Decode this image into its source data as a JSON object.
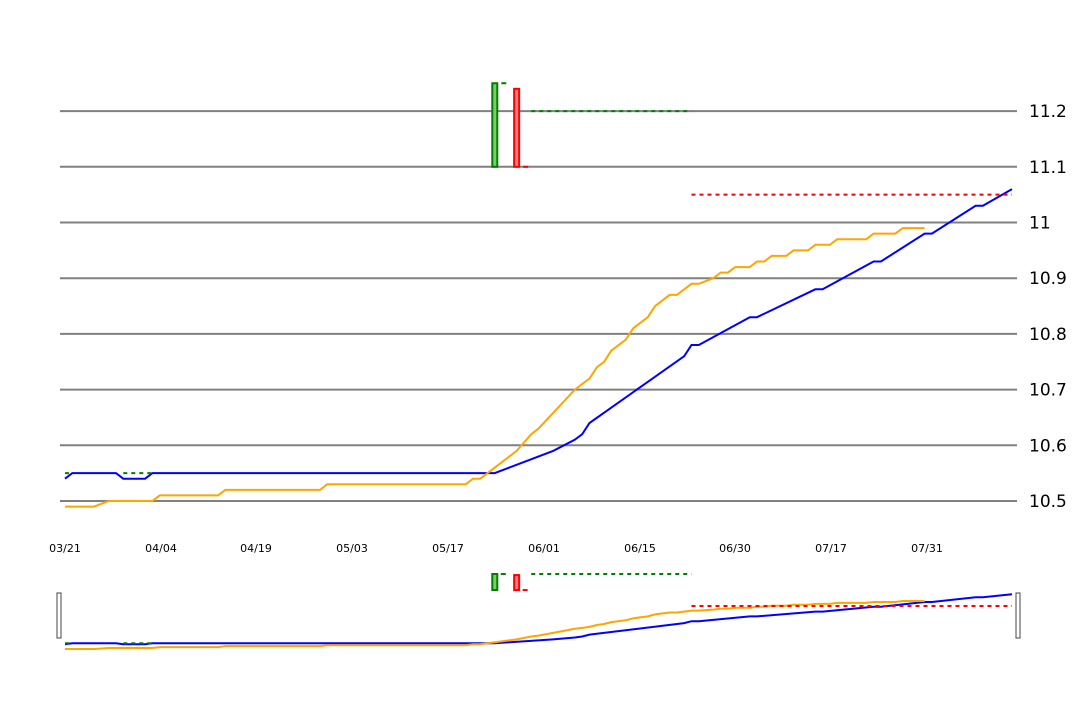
{
  "chart_data": {
    "type": "line",
    "title": "",
    "xlabel": "",
    "ylabel": "",
    "ylim": [
      10.5,
      11.2
    ],
    "y_ticks": [
      "10.5",
      "10.6",
      "10.7",
      "10.8",
      "10.9",
      "11",
      "11.1",
      "11.2"
    ],
    "x_ticks": [
      "03/21",
      "04/04",
      "04/19",
      "05/03",
      "05/17",
      "06/01",
      "06/15",
      "06/30",
      "07/17",
      "07/31"
    ],
    "grid": "horizontal",
    "y_axis_position": "right",
    "colors": {
      "blue_series": "#0000ff",
      "orange_series": "#ffa500",
      "green_marker": "#008000",
      "red_marker": "#ff0000",
      "grid": "#808080"
    },
    "series": [
      {
        "color": "#0000ff",
        "x_index_range": [
          0,
          130
        ],
        "points": [
          [
            0,
            10.54
          ],
          [
            1,
            10.55
          ],
          [
            7,
            10.55
          ],
          [
            8,
            10.54
          ],
          [
            11,
            10.54
          ],
          [
            12,
            10.55
          ],
          [
            59,
            10.55
          ],
          [
            67,
            10.59
          ],
          [
            70,
            10.61
          ],
          [
            71,
            10.62
          ],
          [
            72,
            10.64
          ],
          [
            85,
            10.76
          ],
          [
            86,
            10.78
          ],
          [
            87,
            10.78
          ],
          [
            94,
            10.83
          ],
          [
            95,
            10.83
          ],
          [
            103,
            10.88
          ],
          [
            104,
            10.88
          ],
          [
            111,
            10.93
          ],
          [
            112,
            10.93
          ],
          [
            118,
            10.98
          ],
          [
            119,
            10.98
          ],
          [
            125,
            11.03
          ],
          [
            126,
            11.03
          ],
          [
            130,
            11.06
          ]
        ]
      },
      {
        "color": "#ffa500",
        "x_index_range": [
          0,
          130
        ],
        "points": [
          [
            0,
            10.49
          ],
          [
            4,
            10.49
          ],
          [
            6,
            10.5
          ],
          [
            12,
            10.5
          ],
          [
            13,
            10.51
          ],
          [
            21,
            10.51
          ],
          [
            22,
            10.52
          ],
          [
            35,
            10.52
          ],
          [
            36,
            10.53
          ],
          [
            55,
            10.53
          ],
          [
            56,
            10.54
          ],
          [
            57,
            10.54
          ],
          [
            59,
            10.56
          ],
          [
            62,
            10.59
          ],
          [
            64,
            10.62
          ],
          [
            65,
            10.63
          ],
          [
            70,
            10.7
          ],
          [
            71,
            10.71
          ],
          [
            72,
            10.72
          ],
          [
            73,
            10.74
          ],
          [
            74,
            10.75
          ],
          [
            75,
            10.77
          ],
          [
            77,
            10.79
          ],
          [
            78,
            10.81
          ],
          [
            80,
            10.83
          ],
          [
            81,
            10.85
          ],
          [
            83,
            10.87
          ],
          [
            84,
            10.87
          ],
          [
            86,
            10.89
          ],
          [
            87,
            10.89
          ],
          [
            89,
            10.9
          ],
          [
            90,
            10.91
          ],
          [
            91,
            10.91
          ],
          [
            92,
            10.92
          ],
          [
            94,
            10.92
          ],
          [
            95,
            10.93
          ],
          [
            96,
            10.93
          ],
          [
            97,
            10.94
          ],
          [
            99,
            10.94
          ],
          [
            100,
            10.95
          ],
          [
            102,
            10.95
          ],
          [
            103,
            10.96
          ],
          [
            105,
            10.96
          ],
          [
            106,
            10.97
          ],
          [
            110,
            10.97
          ],
          [
            111,
            10.98
          ],
          [
            114,
            10.98
          ],
          [
            115,
            10.99
          ],
          [
            118,
            10.99
          ]
        ]
      }
    ],
    "markers": [
      {
        "kind": "dashed",
        "color": "#008000",
        "x_index_range": [
          0,
          1
        ],
        "y": 10.55
      },
      {
        "kind": "dashed",
        "color": "#008000",
        "x_index_range": [
          8,
          12
        ],
        "y": 10.55
      },
      {
        "kind": "dashed",
        "color": "#008000",
        "x_index_range": [
          64,
          86
        ],
        "y": 11.2
      },
      {
        "kind": "dashed",
        "color": "#ff0000",
        "x_index_range": [
          86,
          130
        ],
        "y": 11.05
      },
      {
        "kind": "candle",
        "color": "#008000",
        "x_index": 59,
        "low": 11.1,
        "high": 11.25
      },
      {
        "kind": "candle",
        "color": "#ff0000",
        "x_index": 62,
        "low": 11.1,
        "high": 11.24
      }
    ]
  }
}
